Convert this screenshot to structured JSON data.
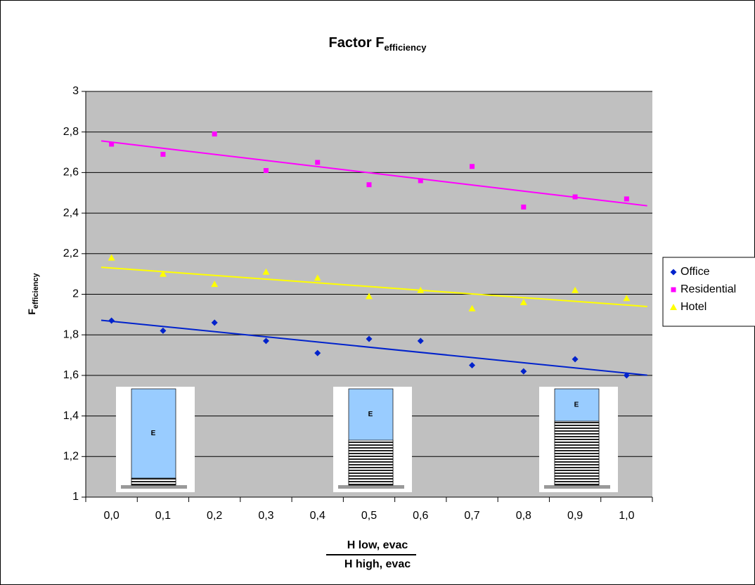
{
  "chart_data": {
    "type": "scatter",
    "title": "Factor F",
    "title_subscript": "efficiency",
    "y_label": "F",
    "y_label_subscript": "efficiency",
    "x_label_numerator": "H low, evac",
    "x_label_denominator": "H high, evac",
    "categories": [
      "0,0",
      "0,1",
      "0,2",
      "0,3",
      "0,4",
      "0,5",
      "0,6",
      "0,7",
      "0,8",
      "0,9",
      "1,0"
    ],
    "series": [
      {
        "name": "Office",
        "color": "#0022cc",
        "marker": "diamond",
        "values": [
          1.87,
          1.82,
          1.86,
          1.77,
          1.71,
          1.78,
          1.77,
          1.65,
          1.62,
          1.68,
          1.6
        ]
      },
      {
        "name": "Residential",
        "color": "#ff00ff",
        "marker": "square",
        "values": [
          2.74,
          2.69,
          2.79,
          2.61,
          2.65,
          2.54,
          2.56,
          2.63,
          2.43,
          2.48,
          2.47
        ]
      },
      {
        "name": "Hotel",
        "color": "#ffff00",
        "marker": "triangle",
        "values": [
          2.18,
          2.1,
          2.05,
          2.11,
          2.08,
          1.99,
          2.02,
          1.93,
          1.96,
          2.02,
          1.98
        ]
      }
    ],
    "trendline": "linear",
    "ylim": [
      1,
      3
    ],
    "yticks": [
      1,
      {
        "value": 1.2,
        "label": "1,2"
      },
      {
        "value": 1.4,
        "label": "1,4"
      },
      {
        "value": 1.6,
        "label": "1,6"
      },
      {
        "value": 1.8,
        "label": "1,8"
      },
      2,
      {
        "value": 2.2,
        "label": "2,2"
      },
      {
        "value": 2.4,
        "label": "2,4"
      },
      {
        "value": 2.6,
        "label": "2,6"
      },
      {
        "value": 2.8,
        "label": "2,8"
      },
      3
    ],
    "grid": true,
    "legend": "right",
    "inset_label": "E"
  }
}
